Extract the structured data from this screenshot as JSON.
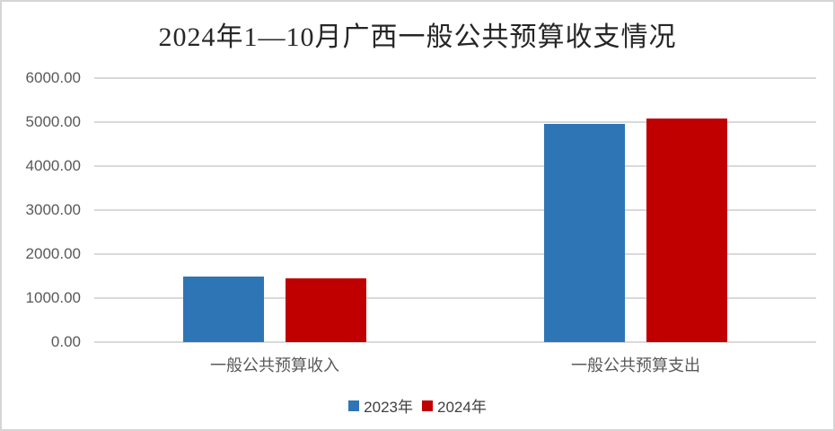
{
  "title": "2024年1—10月广西一般公共预算收支情况",
  "chart_data": {
    "type": "bar",
    "categories": [
      "一般公共预算收入",
      "一般公共预算支出"
    ],
    "series": [
      {
        "name": "2023年",
        "color": "#2E75B6",
        "values": [
          1500,
          4960
        ]
      },
      {
        "name": "2024年",
        "color": "#C00000",
        "values": [
          1440,
          5090
        ]
      }
    ],
    "ylabel": "",
    "xlabel": "",
    "ylim": [
      0,
      6000
    ],
    "ytick_step": 1000,
    "ytick_labels": [
      "0.00",
      "1000.00",
      "2000.00",
      "3000.00",
      "4000.00",
      "5000.00",
      "6000.00"
    ],
    "grid": true,
    "legend_position": "bottom"
  },
  "colors": {
    "background": "#FFFFFF",
    "border": "#D5D5D5",
    "gridline": "#D9D9D9",
    "title_text": "#262626",
    "axis_text": "#595959",
    "legend_text": "#404040"
  }
}
